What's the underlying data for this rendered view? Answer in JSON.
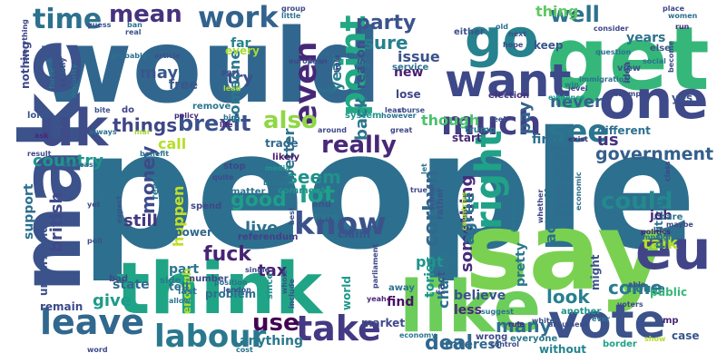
{
  "wordcloud": {
    "words": [
      {
        "text": "people",
        "color": "#2d6f8e"
      },
      {
        "text": "would",
        "color": "#31678e"
      },
      {
        "text": "say",
        "color": "#7ad151"
      },
      {
        "text": "think",
        "color": "#20a486"
      },
      {
        "text": "get",
        "color": "#35b779"
      },
      {
        "text": "make",
        "color": "#3b528b"
      },
      {
        "text": "like",
        "color": "#6ccd5a"
      },
      {
        "text": "one",
        "color": "#3e4a89"
      },
      {
        "text": "vote",
        "color": "#3b528b"
      },
      {
        "text": "eu",
        "color": "#414487"
      },
      {
        "text": "uk",
        "color": "#3e4c8a"
      },
      {
        "text": "go",
        "color": "#26828e"
      },
      {
        "text": "want",
        "color": "#3e4989"
      },
      {
        "text": "labour",
        "color": "#2a788e"
      },
      {
        "text": "leave",
        "color": "#31688e"
      },
      {
        "text": "take",
        "color": "#443983"
      },
      {
        "text": "know",
        "color": "#3b528b"
      },
      {
        "text": "right",
        "color": "#1fa287"
      },
      {
        "text": "much",
        "color": "#423f85"
      },
      {
        "text": "work",
        "color": "#33638d"
      },
      {
        "text": "time",
        "color": "#2c718e"
      },
      {
        "text": "point",
        "color": "#22a884"
      },
      {
        "text": "even",
        "color": "#472878"
      },
      {
        "text": "see",
        "color": "#2a768e"
      },
      {
        "text": "need",
        "color": "#2f6c8e"
      },
      {
        "text": "could",
        "color": "#23898e"
      },
      {
        "text": "also",
        "color": "#8fd744"
      },
      {
        "text": "really",
        "color": "#482878"
      },
      {
        "text": "brexit",
        "color": "#3b528b"
      },
      {
        "text": "mean",
        "color": "#46327e"
      },
      {
        "text": "party",
        "color": "#3a548c"
      },
      {
        "text": "well",
        "color": "#2c718e"
      },
      {
        "text": "government",
        "color": "#355f8d"
      },
      {
        "text": "use",
        "color": "#440154"
      },
      {
        "text": "good",
        "color": "#1f9e89"
      },
      {
        "text": "lot",
        "color": "#1fa088"
      },
      {
        "text": "fuck",
        "color": "#482475"
      },
      {
        "text": "corbyn",
        "color": "#31688e"
      },
      {
        "text": "money",
        "color": "#3e4a89"
      },
      {
        "text": "something",
        "color": "#472d7b"
      },
      {
        "text": "deal",
        "color": "#31688e"
      },
      {
        "text": "country",
        "color": "#1f968b"
      },
      {
        "text": "us",
        "color": "#46337e"
      },
      {
        "text": "seem",
        "color": "#21918c"
      },
      {
        "text": "back",
        "color": "#2a768e"
      },
      {
        "text": "sure",
        "color": "#277f8e"
      },
      {
        "text": "things",
        "color": "#3f4788"
      },
      {
        "text": "many",
        "color": "#2e6e8e"
      },
      {
        "text": "come",
        "color": "#297b8e"
      },
      {
        "text": "look",
        "color": "#277f8e"
      },
      {
        "text": "tax",
        "color": "#482173"
      },
      {
        "text": "give",
        "color": "#1e9b8a"
      },
      {
        "text": "british",
        "color": "#3e4a89"
      },
      {
        "text": "happen",
        "color": "#c2df23"
      },
      {
        "text": "agree",
        "color": "#2b748e"
      },
      {
        "text": "year",
        "color": "#27808e"
      },
      {
        "text": "live",
        "color": "#2d708e"
      },
      {
        "text": "still",
        "color": "#453781"
      },
      {
        "text": "talk",
        "color": "#b5de2b"
      },
      {
        "text": "pay",
        "color": "#33638d"
      },
      {
        "text": "actually",
        "color": "#2d708e"
      },
      {
        "text": "better",
        "color": "#2c738e"
      },
      {
        "text": "never",
        "color": "#34618d"
      },
      {
        "text": "though",
        "color": "#4ac16d"
      },
      {
        "text": "thing",
        "color": "#5ec962"
      },
      {
        "text": "years",
        "color": "#2c728e"
      },
      {
        "text": "issue",
        "color": "#3b528b"
      },
      {
        "text": "try",
        "color": "#3b528b"
      },
      {
        "text": "someone",
        "color": "#2a788e"
      },
      {
        "text": "may",
        "color": "#38588c"
      },
      {
        "text": "call",
        "color": "#b5de2b"
      },
      {
        "text": "reason",
        "color": "#3d4e8a"
      },
      {
        "text": "change",
        "color": "#2c738e"
      },
      {
        "text": "put",
        "color": "#1f958b"
      },
      {
        "text": "believe",
        "color": "#3b528b"
      },
      {
        "text": "less",
        "color": "#482777"
      },
      {
        "text": "state",
        "color": "#31688e"
      },
      {
        "text": "support",
        "color": "#2d708e"
      },
      {
        "text": "part",
        "color": "#2a768e"
      },
      {
        "text": "pretty",
        "color": "#2a788e"
      },
      {
        "text": "find",
        "color": "#471164"
      },
      {
        "text": "tories",
        "color": "#1f968b"
      },
      {
        "text": "fact",
        "color": "#39568c"
      },
      {
        "text": "first",
        "color": "#2e6e8e"
      },
      {
        "text": "political",
        "color": "#2c728e"
      },
      {
        "text": "job",
        "color": "#482878"
      },
      {
        "text": "every",
        "color": "#a8db34"
      },
      {
        "text": "far",
        "color": "#26828e"
      },
      {
        "text": "new",
        "color": "#481d6f"
      },
      {
        "text": "free",
        "color": "#39568c"
      },
      {
        "text": "anything",
        "color": "#2a788e"
      },
      {
        "text": "interest",
        "color": "#31688e"
      },
      {
        "text": "without",
        "color": "#25848e"
      },
      {
        "text": "market",
        "color": "#3f4889"
      },
      {
        "text": "trade",
        "color": "#31688e"
      },
      {
        "text": "claim",
        "color": "#3a548c"
      },
      {
        "text": "problem",
        "color": "#2d708e"
      },
      {
        "text": "enough",
        "color": "#b5de2b"
      },
      {
        "text": "tell",
        "color": "#2c728e"
      },
      {
        "text": "world",
        "color": "#1f998a"
      },
      {
        "text": "house",
        "color": "#2a768e"
      },
      {
        "text": "case",
        "color": "#39568c"
      },
      {
        "text": "public",
        "color": "#37b878"
      },
      {
        "text": "might",
        "color": "#3b528b"
      },
      {
        "text": "lose",
        "color": "#3f4788"
      },
      {
        "text": "keep",
        "color": "#39568c"
      },
      {
        "text": "start",
        "color": "#482878"
      },
      {
        "text": "different",
        "color": "#2d708e"
      },
      {
        "text": "power",
        "color": "#31688e"
      },
      {
        "text": "remain",
        "color": "#3e4a89"
      },
      {
        "text": "understand",
        "color": "#3b528b"
      },
      {
        "text": "referendum",
        "color": "#424086"
      },
      {
        "text": "nothing",
        "color": "#3e4a89"
      },
      {
        "text": "yes",
        "color": "#3b528b"
      },
      {
        "text": "away",
        "color": "#2c738e"
      },
      {
        "text": "wrong",
        "color": "#3e4989"
      },
      {
        "text": "everyone",
        "color": "#2a788e"
      },
      {
        "text": "another",
        "color": "#1f958b"
      },
      {
        "text": "stop",
        "color": "#3f4788"
      },
      {
        "text": "matter",
        "color": "#2c728e"
      },
      {
        "text": "comment",
        "color": "#21918c"
      },
      {
        "text": "end",
        "color": "#3b528b"
      },
      {
        "text": "hard",
        "color": "#2a788e"
      },
      {
        "text": "system",
        "color": "#1f968b"
      },
      {
        "text": "trump",
        "color": "#2a788e"
      },
      {
        "text": "election",
        "color": "#46327e"
      },
      {
        "text": "service",
        "color": "#2c728e"
      },
      {
        "text": "care",
        "color": "#2a768e"
      },
      {
        "text": "mp",
        "color": "#482878"
      },
      {
        "text": "likely",
        "color": "#48196b"
      },
      {
        "text": "read",
        "color": "#2a788e"
      },
      {
        "text": "spend",
        "color": "#3f4788"
      },
      {
        "text": "since",
        "color": "#21918c"
      },
      {
        "text": "whole",
        "color": "#39568c"
      },
      {
        "text": "bad",
        "color": "#3e4989"
      },
      {
        "text": "side",
        "color": "#2a788e"
      },
      {
        "text": "number",
        "color": "#3f4788"
      },
      {
        "text": "position",
        "color": "#2c718e"
      },
      {
        "text": "last",
        "color": "#2c728e"
      },
      {
        "text": "allow",
        "color": "#2a768e"
      },
      {
        "text": "word",
        "color": "#3e4a89"
      },
      {
        "text": "cost",
        "color": "#2d708e"
      },
      {
        "text": "white",
        "color": "#3b528b"
      },
      {
        "text": "economy",
        "color": "#2a788e"
      },
      {
        "text": "control",
        "color": "#3f4788"
      },
      {
        "text": "border",
        "color": "#1fa188"
      },
      {
        "text": "show",
        "color": "#b5de2b"
      },
      {
        "text": "yeah",
        "color": "#482878"
      },
      {
        "text": "london",
        "color": "#3b528b"
      },
      {
        "text": "rather",
        "color": "#39568c"
      },
      {
        "text": "school",
        "color": "#3b528b"
      },
      {
        "text": "let",
        "color": "#2c718e"
      },
      {
        "text": "ask",
        "color": "#482878"
      },
      {
        "text": "long",
        "color": "#39568c"
      },
      {
        "text": "bite",
        "color": "#3b528b"
      },
      {
        "text": "do",
        "color": "#3f4788"
      },
      {
        "text": "policy",
        "color": "#482878"
      },
      {
        "text": "remove",
        "color": "#2a768e"
      },
      {
        "text": "life",
        "color": "#481f70"
      },
      {
        "text": "big",
        "color": "#2c728e"
      },
      {
        "text": "always",
        "color": "#2d708e"
      },
      {
        "text": "mar",
        "color": "#a8db34"
      },
      {
        "text": "result",
        "color": "#3f4788"
      },
      {
        "text": "increase",
        "color": "#2d708e"
      },
      {
        "text": "benefit",
        "color": "#2c728e"
      },
      {
        "text": "quite",
        "color": "#3e4a89"
      },
      {
        "text": "media",
        "color": "#1f948c"
      },
      {
        "text": "britain",
        "color": "#2a768e"
      },
      {
        "text": "best",
        "color": "#3b528b"
      },
      {
        "text": "rule",
        "color": "#482878"
      },
      {
        "text": "argument",
        "color": "#3e4989"
      },
      {
        "text": "ever",
        "color": "#2c728e"
      },
      {
        "text": "voters",
        "color": "#3e4a89"
      },
      {
        "text": "campaign",
        "color": "#2d708e"
      },
      {
        "text": "maybe",
        "color": "#3e4a89"
      },
      {
        "text": "politics",
        "color": "#482878"
      },
      {
        "text": "able",
        "color": "#3b528b"
      },
      {
        "text": "class",
        "color": "#3f4788"
      },
      {
        "text": "exist",
        "color": "#46327e"
      },
      {
        "text": "economic",
        "color": "#2c728e"
      },
      {
        "text": "evidence",
        "color": "#1f988b"
      },
      {
        "text": "immigration",
        "color": "#2d708e"
      },
      {
        "text": "level",
        "color": "#3f4788"
      },
      {
        "text": "win",
        "color": "#2a768e"
      },
      {
        "text": "view",
        "color": "#3b528b"
      },
      {
        "text": "social",
        "color": "#2c728e"
      },
      {
        "text": "idea",
        "color": "#3e4989"
      },
      {
        "text": "example",
        "color": "#3f4788"
      },
      {
        "text": "become",
        "color": "#3e4a89"
      },
      {
        "text": "else",
        "color": "#3b528b"
      },
      {
        "text": "women",
        "color": "#2d708e"
      },
      {
        "text": "run",
        "color": "#482878"
      },
      {
        "text": "place",
        "color": "#3e4a89"
      },
      {
        "text": "question",
        "color": "#2c728e"
      },
      {
        "text": "consider",
        "color": "#3f4788"
      },
      {
        "text": "next",
        "color": "#3b528b"
      },
      {
        "text": "old",
        "color": "#2c728e"
      },
      {
        "text": "hope",
        "color": "#3e4989"
      },
      {
        "text": "either",
        "color": "#3b528b"
      },
      {
        "text": "nhs",
        "color": "#2a768e"
      },
      {
        "text": "european",
        "color": "#3f4788"
      },
      {
        "text": "little",
        "color": "#2c728e"
      },
      {
        "text": "group",
        "color": "#3e4a89"
      },
      {
        "text": "article",
        "color": "#3b528b"
      },
      {
        "text": "probably",
        "color": "#2d708e"
      },
      {
        "text": "post",
        "color": "#3e4a89"
      },
      {
        "text": "lead",
        "color": "#a8db34"
      },
      {
        "text": "tory",
        "color": "#3b528b"
      },
      {
        "text": "hold",
        "color": "#3f4788"
      },
      {
        "text": "help",
        "color": "#2c728e"
      },
      {
        "text": "course",
        "color": "#3b528b"
      },
      {
        "text": "least",
        "color": "#3e4a89"
      },
      {
        "text": "however",
        "color": "#2c728e"
      },
      {
        "text": "great",
        "color": "#3f4788"
      },
      {
        "text": "around",
        "color": "#3e4989"
      },
      {
        "text": "feel",
        "color": "#3b528b"
      },
      {
        "text": "real",
        "color": "#3b528b"
      },
      {
        "text": "force",
        "color": "#2c728e"
      },
      {
        "text": "exactly",
        "color": "#3e4a89"
      },
      {
        "text": "majority",
        "color": "#2d708e"
      },
      {
        "text": "everything",
        "color": "#3f4788"
      },
      {
        "text": "guess",
        "color": "#3b528b"
      },
      {
        "text": "countries",
        "color": "#a8db34"
      },
      {
        "text": "parliament",
        "color": "#3e4a89"
      },
      {
        "text": "include",
        "color": "#3b528b"
      },
      {
        "text": "suggest",
        "color": "#2c728e"
      },
      {
        "text": "true",
        "color": "#3f4788"
      },
      {
        "text": "already",
        "color": "#2a768e"
      },
      {
        "text": "whether",
        "color": "#3e4a89"
      },
      {
        "text": "expect",
        "color": "#3b528b"
      },
      {
        "text": "europe",
        "color": "#2c728e"
      },
      {
        "text": "single",
        "color": "#3f4788"
      },
      {
        "text": "yet",
        "color": "#3e4a89"
      },
      {
        "text": "poll",
        "color": "#3b528b"
      },
      {
        "text": "ban",
        "color": "#2c728e"
      }
    ]
  }
}
